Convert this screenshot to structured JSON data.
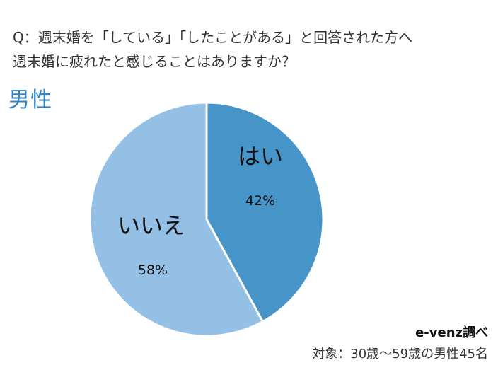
{
  "question": {
    "line1": "Q：週末婚を「している」「したことがある」と回答された方へ",
    "line2": "週末婚に疲れたと感じることはありますか？"
  },
  "segment": "男性",
  "chart_data": {
    "type": "pie",
    "title": "",
    "slices": [
      {
        "label": "はい",
        "value": 42,
        "display": "42%",
        "color": "#4694c8"
      },
      {
        "label": "いいえ",
        "value": 58,
        "display": "58%",
        "color": "#94c0e6"
      }
    ],
    "start": "12 o'clock",
    "direction": "clockwise",
    "slice_border_color": "#ffffff"
  },
  "footer": {
    "source": "e-venz調べ",
    "subject": "対象：30歳～59歳の男性45名"
  }
}
